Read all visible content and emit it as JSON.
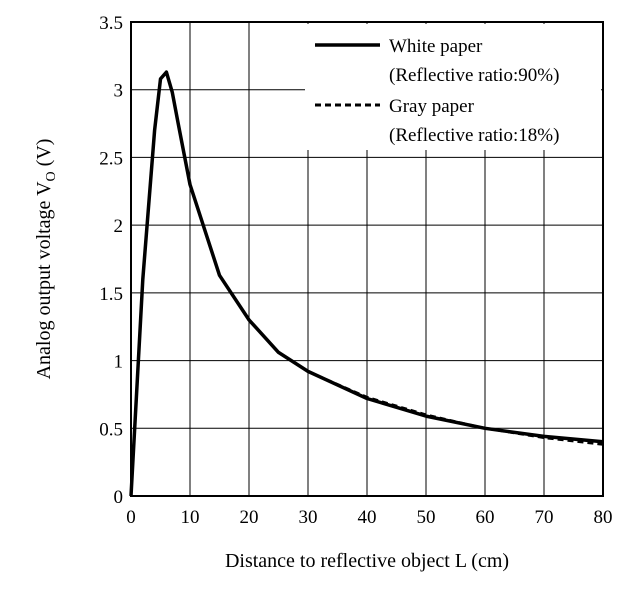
{
  "chart_data": {
    "type": "line",
    "xlabel": "Distance to reflective object L (cm)",
    "ylabel": "Analog output voltage V",
    "ylabel_subscript": "O",
    "ylabel_unit": " (V)",
    "xlim": [
      0,
      80
    ],
    "ylim": [
      0,
      3.5
    ],
    "x_ticks": [
      "0",
      "10",
      "20",
      "30",
      "40",
      "50",
      "60",
      "70",
      "80"
    ],
    "y_ticks": [
      "0",
      "0.5",
      "1",
      "1.5",
      "2",
      "2.5",
      "3",
      "3.5"
    ],
    "grid": true,
    "legend_position": "top-right",
    "series": [
      {
        "name": "White paper",
        "name_line2": "(Reflective ratio:90%)",
        "line_style": "solid",
        "x": [
          0,
          2,
          4,
          5,
          6,
          7,
          8,
          10,
          15,
          20,
          25,
          30,
          40,
          50,
          60,
          70,
          80
        ],
        "y": [
          0,
          1.6,
          2.7,
          3.08,
          3.13,
          2.98,
          2.75,
          2.3,
          1.63,
          1.3,
          1.06,
          0.92,
          0.72,
          0.59,
          0.5,
          0.44,
          0.4
        ]
      },
      {
        "name": "Gray paper",
        "name_line2": "(Reflective ratio:18%)",
        "line_style": "dashed",
        "x": [
          0,
          2,
          4,
          5,
          6,
          7,
          8,
          10,
          15,
          20,
          25,
          30,
          40,
          50,
          60,
          70,
          80
        ],
        "y": [
          0,
          1.6,
          2.7,
          3.08,
          3.13,
          2.98,
          2.75,
          2.3,
          1.63,
          1.3,
          1.06,
          0.92,
          0.73,
          0.6,
          0.5,
          0.43,
          0.38
        ]
      }
    ]
  }
}
